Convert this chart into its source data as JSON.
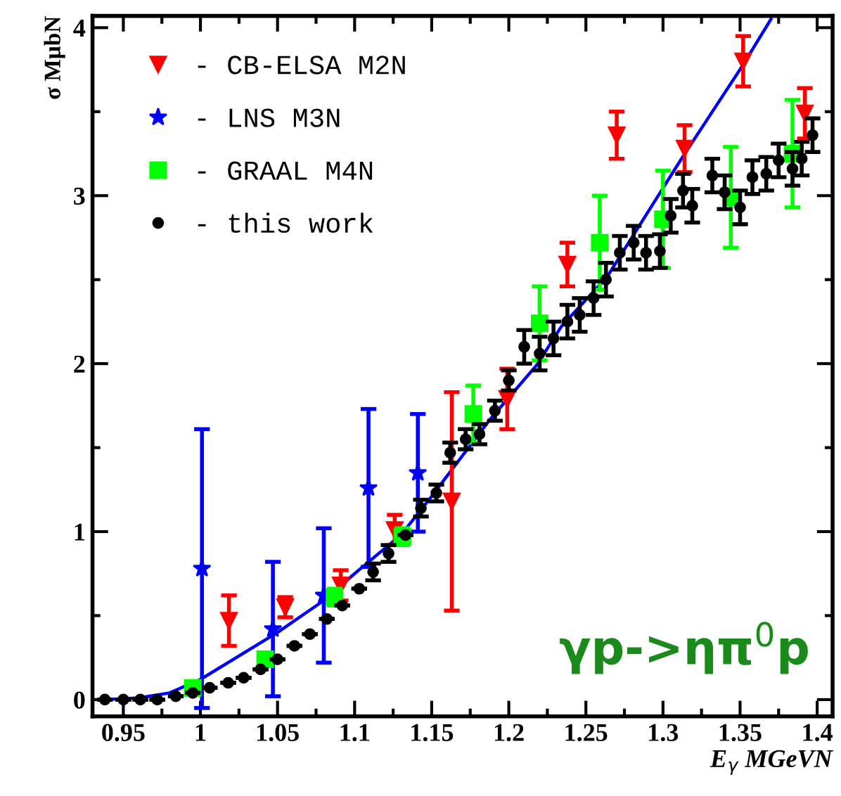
{
  "chart_data": {
    "type": "scatter",
    "xlabel": "E$_{γ}$ MGeVN",
    "ylabel": "σ MμbN",
    "xlim": [
      0.93,
      1.41
    ],
    "ylim": [
      -0.1,
      4.07
    ],
    "xticks": [
      0.95,
      1,
      1.05,
      1.1,
      1.15,
      1.2,
      1.25,
      1.3,
      1.35,
      1.4
    ],
    "yticks": [
      0,
      1,
      2,
      3,
      4
    ],
    "grid": false,
    "legend": "top left",
    "annotations": [
      "γp->ηπ$^{0}$p"
    ],
    "series": [
      {
        "name": "- CB-ELSA M2N",
        "color": "#ff0000",
        "marker": "triangle",
        "x": [
          1.0185,
          1.055,
          1.091,
          1.126,
          1.163,
          1.199,
          1.238,
          1.27,
          1.314,
          1.352,
          1.392
        ],
        "values": [
          0.47,
          0.55,
          0.68,
          1.01,
          1.18,
          1.79,
          2.59,
          3.36,
          3.28,
          3.8,
          3.49
        ],
        "errors": [
          0.15,
          0.06,
          0.09,
          0.09,
          0.65,
          0.18,
          0.13,
          0.14,
          0.14,
          0.15,
          0.15
        ]
      },
      {
        "name": "- LNS M3N",
        "color": "#0000ff",
        "marker": "star",
        "x": [
          1.001,
          1.047,
          1.08,
          1.109,
          1.141
        ],
        "values": [
          0.78,
          0.42,
          0.62,
          1.26,
          1.35
        ],
        "errors": [
          0.83,
          0.4,
          0.4,
          0.47,
          0.35
        ]
      },
      {
        "name": "- GRAAL M4N",
        "color": "#00ff00",
        "marker": "square",
        "x": [
          0.995,
          1.042,
          1.087,
          1.131,
          1.177,
          1.22,
          1.259,
          1.3,
          1.344,
          1.384
        ],
        "values": [
          0.07,
          0.24,
          0.61,
          0.97,
          1.7,
          2.24,
          2.72,
          2.86,
          2.99,
          3.25
        ],
        "errors": [
          null,
          null,
          0.05,
          0.05,
          0.17,
          0.22,
          0.28,
          0.29,
          0.3,
          0.32
        ]
      },
      {
        "name": "- this work",
        "color": "#000000",
        "marker": "circle",
        "x": [
          0.938,
          0.95,
          0.961,
          0.972,
          0.984,
          0.995,
          1.006,
          1.018,
          1.028,
          1.039,
          1.05,
          1.061,
          1.071,
          1.082,
          1.092,
          1.103,
          1.112,
          1.122,
          1.133,
          1.143,
          1.153,
          1.162,
          1.172,
          1.181,
          1.191,
          1.2,
          1.21,
          1.22,
          1.229,
          1.238,
          1.246,
          1.255,
          1.263,
          1.272,
          1.281,
          1.289,
          1.298,
          1.305,
          1.313,
          1.319,
          1.332,
          1.34,
          1.35,
          1.358,
          1.367,
          1.375,
          1.384,
          1.39,
          1.397
        ],
        "values": [
          0,
          0,
          0,
          0,
          0.02,
          0.04,
          0.07,
          0.1,
          0.13,
          0.18,
          0.24,
          0.32,
          0.39,
          0.48,
          0.56,
          0.66,
          0.76,
          0.87,
          0.98,
          1.14,
          1.23,
          1.47,
          1.55,
          1.58,
          1.72,
          1.9,
          2.1,
          2.06,
          2.15,
          2.25,
          2.29,
          2.39,
          2.5,
          2.66,
          2.72,
          2.66,
          2.67,
          2.88,
          3.03,
          2.94,
          3.12,
          3.02,
          2.93,
          3.11,
          3.13,
          3.21,
          3.16,
          3.22,
          3.36
        ],
        "errors": [
          null,
          null,
          null,
          null,
          null,
          null,
          null,
          null,
          null,
          null,
          null,
          null,
          null,
          null,
          null,
          null,
          0.05,
          0.05,
          null,
          0.05,
          0.05,
          0.06,
          0.06,
          0.06,
          0.06,
          0.06,
          0.1,
          0.1,
          0.1,
          0.1,
          0.1,
          0.1,
          0.1,
          0.1,
          0.1,
          0.1,
          0.1,
          0.1,
          0.1,
          0.1,
          0.1,
          0.1,
          0.1,
          0.1,
          0.1,
          0.1,
          0.1,
          0.1,
          0.1
        ]
      },
      {
        "type": "line",
        "color": "#0000ff",
        "line_style": "solid",
        "x": [
          0.938,
          0.96,
          0.98,
          1.0,
          1.05,
          1.08,
          1.1,
          1.13,
          1.15,
          1.159,
          1.188,
          1.218,
          1.234,
          1.264,
          1.312,
          1.352,
          1.37
        ],
        "values": [
          0,
          0.01,
          0.04,
          0.12,
          0.4,
          0.59,
          0.75,
          0.98,
          1.21,
          1.32,
          1.67,
          1.99,
          2.22,
          2.52,
          3.22,
          3.78,
          4.05
        ]
      }
    ]
  }
}
